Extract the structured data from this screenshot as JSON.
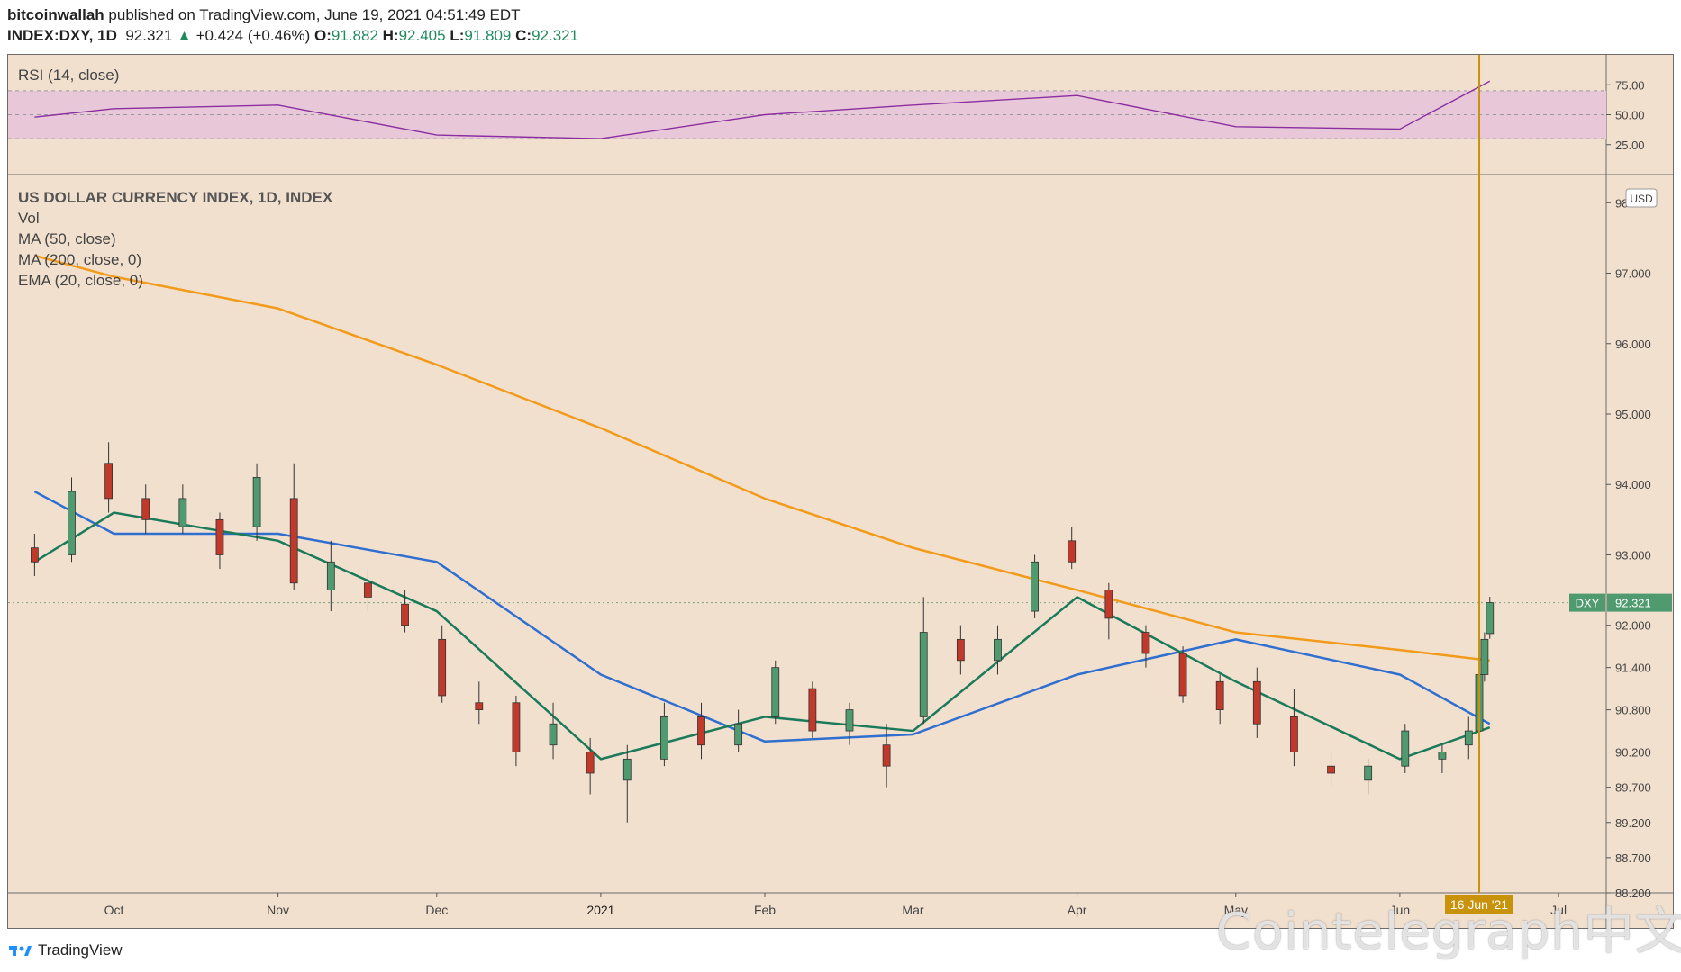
{
  "header": {
    "author": "bitcoinwallah",
    "published_text": "published on TradingView.com, June 19, 2021 04:51:49 EDT",
    "symbol": "INDEX:DXY, 1D",
    "price": "92.321",
    "change": "+0.424 (+0.46%)",
    "ohlc_o_label": "O:",
    "ohlc_o": "91.882",
    "ohlc_h_label": "H:",
    "ohlc_h": "92.405",
    "ohlc_l_label": "L:",
    "ohlc_l": "91.809",
    "ohlc_c_label": "C:",
    "ohlc_c": "92.321"
  },
  "rsi_panel": {
    "label": "RSI (14, close)",
    "ticks": [
      "75.00",
      "50.00",
      "25.00"
    ]
  },
  "main_panel": {
    "legend": [
      "US DOLLAR CURRENCY INDEX, 1D, INDEX",
      "Vol",
      "MA (50, close)",
      "MA (200, close, 0)",
      "EMA (20, close, 0)"
    ],
    "currency": "USD",
    "price_tag_symbol": "DXY",
    "price_tag_value": "92.321",
    "crosshair_date": "16 Jun '21"
  },
  "footer": {
    "brand": "TradingView"
  },
  "watermark": "Cointelegraph中文",
  "colors": {
    "background": "#f2e0cf",
    "rsi_band": "#e8c8d8",
    "rsi_line": "#8a2ea0",
    "up_candle": "#4f9a6e",
    "down_candle": "#c0392b",
    "ma50": "#2f6fcf",
    "ma200": "#f29a1a",
    "ema20": "#1b7a5a",
    "crosshair": "#c8920a"
  },
  "chart_data": {
    "type": "line",
    "title": "US DOLLAR CURRENCY INDEX, 1D, INDEX",
    "ylabel": "USD",
    "ylim": [
      88.2,
      98.4
    ],
    "y_ticks": [
      "98.000",
      "97.000",
      "96.000",
      "95.000",
      "94.000",
      "93.000",
      "92.000",
      "91.400",
      "90.800",
      "90.200",
      "89.700",
      "89.200",
      "88.700",
      "88.200"
    ],
    "x_ticks": [
      "Oct",
      "Nov",
      "Dec",
      "2021",
      "Feb",
      "Mar",
      "Apr",
      "May",
      "Jun",
      "Jul"
    ],
    "series": [
      {
        "name": "MA (200, close, 0)",
        "x": [
          "2020-09-16",
          "2020-10-01",
          "2020-11-01",
          "2020-12-01",
          "2021-01-01",
          "2021-02-01",
          "2021-03-01",
          "2021-04-01",
          "2021-05-01",
          "2021-06-01",
          "2021-06-18"
        ],
        "values": [
          97.25,
          96.95,
          96.5,
          95.7,
          94.8,
          93.8,
          93.1,
          92.5,
          91.9,
          91.65,
          91.5
        ]
      },
      {
        "name": "MA (50, close)",
        "x": [
          "2020-09-16",
          "2020-10-01",
          "2020-11-01",
          "2020-12-01",
          "2021-01-01",
          "2021-02-01",
          "2021-03-01",
          "2021-04-01",
          "2021-05-01",
          "2021-06-01",
          "2021-06-18"
        ],
        "values": [
          93.9,
          93.3,
          93.3,
          92.9,
          91.3,
          90.35,
          90.45,
          91.3,
          91.8,
          91.3,
          90.6
        ]
      },
      {
        "name": "EMA (20, close, 0)",
        "x": [
          "2020-09-16",
          "2020-10-01",
          "2020-11-01",
          "2020-12-01",
          "2021-01-01",
          "2021-02-01",
          "2021-03-01",
          "2021-04-01",
          "2021-05-01",
          "2021-06-01",
          "2021-06-18"
        ],
        "values": [
          92.9,
          93.6,
          93.2,
          92.2,
          90.1,
          90.7,
          90.5,
          92.4,
          91.2,
          90.1,
          90.55
        ]
      }
    ],
    "candles": [
      {
        "x": "2020-09-16",
        "o": 93.1,
        "h": 93.3,
        "l": 92.7,
        "c": 92.9
      },
      {
        "x": "2020-09-23",
        "o": 93.0,
        "h": 94.1,
        "l": 92.9,
        "c": 93.9
      },
      {
        "x": "2020-09-30",
        "o": 94.3,
        "h": 94.6,
        "l": 93.6,
        "c": 93.8
      },
      {
        "x": "2020-10-07",
        "o": 93.8,
        "h": 94.0,
        "l": 93.3,
        "c": 93.5
      },
      {
        "x": "2020-10-14",
        "o": 93.4,
        "h": 94.0,
        "l": 93.3,
        "c": 93.8
      },
      {
        "x": "2020-10-21",
        "o": 93.5,
        "h": 93.6,
        "l": 92.8,
        "c": 93.0
      },
      {
        "x": "2020-10-28",
        "o": 93.4,
        "h": 94.3,
        "l": 93.2,
        "c": 94.1
      },
      {
        "x": "2020-11-04",
        "o": 93.8,
        "h": 94.3,
        "l": 92.5,
        "c": 92.6
      },
      {
        "x": "2020-11-11",
        "o": 92.5,
        "h": 93.2,
        "l": 92.2,
        "c": 92.9
      },
      {
        "x": "2020-11-18",
        "o": 92.6,
        "h": 92.8,
        "l": 92.2,
        "c": 92.4
      },
      {
        "x": "2020-11-25",
        "o": 92.3,
        "h": 92.5,
        "l": 91.9,
        "c": 92.0
      },
      {
        "x": "2020-12-02",
        "o": 91.8,
        "h": 92.0,
        "l": 90.9,
        "c": 91.0
      },
      {
        "x": "2020-12-09",
        "o": 90.9,
        "h": 91.2,
        "l": 90.6,
        "c": 90.8
      },
      {
        "x": "2020-12-16",
        "o": 90.9,
        "h": 91.0,
        "l": 90.0,
        "c": 90.2
      },
      {
        "x": "2020-12-23",
        "o": 90.3,
        "h": 90.9,
        "l": 90.1,
        "c": 90.6
      },
      {
        "x": "2020-12-30",
        "o": 90.2,
        "h": 90.4,
        "l": 89.6,
        "c": 89.9
      },
      {
        "x": "2021-01-06",
        "o": 89.8,
        "h": 90.3,
        "l": 89.2,
        "c": 90.1
      },
      {
        "x": "2021-01-13",
        "o": 90.1,
        "h": 90.9,
        "l": 90.0,
        "c": 90.7
      },
      {
        "x": "2021-01-20",
        "o": 90.7,
        "h": 90.9,
        "l": 90.1,
        "c": 90.3
      },
      {
        "x": "2021-01-27",
        "o": 90.3,
        "h": 90.8,
        "l": 90.2,
        "c": 90.6
      },
      {
        "x": "2021-02-03",
        "o": 90.7,
        "h": 91.5,
        "l": 90.6,
        "c": 91.4
      },
      {
        "x": "2021-02-10",
        "o": 91.1,
        "h": 91.2,
        "l": 90.4,
        "c": 90.5
      },
      {
        "x": "2021-02-17",
        "o": 90.5,
        "h": 90.9,
        "l": 90.3,
        "c": 90.8
      },
      {
        "x": "2021-02-24",
        "o": 90.3,
        "h": 90.6,
        "l": 89.7,
        "c": 90.0
      },
      {
        "x": "2021-03-03",
        "o": 90.7,
        "h": 92.4,
        "l": 90.6,
        "c": 91.9
      },
      {
        "x": "2021-03-10",
        "o": 91.8,
        "h": 92.0,
        "l": 91.3,
        "c": 91.5
      },
      {
        "x": "2021-03-17",
        "o": 91.5,
        "h": 92.0,
        "l": 91.3,
        "c": 91.8
      },
      {
        "x": "2021-03-24",
        "o": 92.2,
        "h": 93.0,
        "l": 92.1,
        "c": 92.9
      },
      {
        "x": "2021-03-31",
        "o": 93.2,
        "h": 93.4,
        "l": 92.8,
        "c": 92.9
      },
      {
        "x": "2021-04-07",
        "o": 92.5,
        "h": 92.6,
        "l": 91.8,
        "c": 92.1
      },
      {
        "x": "2021-04-14",
        "o": 91.9,
        "h": 92.0,
        "l": 91.4,
        "c": 91.6
      },
      {
        "x": "2021-04-21",
        "o": 91.6,
        "h": 91.7,
        "l": 90.9,
        "c": 91.0
      },
      {
        "x": "2021-04-28",
        "o": 91.2,
        "h": 91.3,
        "l": 90.6,
        "c": 90.8
      },
      {
        "x": "2021-05-05",
        "o": 91.2,
        "h": 91.4,
        "l": 90.4,
        "c": 90.6
      },
      {
        "x": "2021-05-12",
        "o": 90.7,
        "h": 91.1,
        "l": 90.0,
        "c": 90.2
      },
      {
        "x": "2021-05-19",
        "o": 90.0,
        "h": 90.2,
        "l": 89.7,
        "c": 89.9
      },
      {
        "x": "2021-05-26",
        "o": 89.8,
        "h": 90.1,
        "l": 89.6,
        "c": 90.0
      },
      {
        "x": "2021-06-02",
        "o": 90.0,
        "h": 90.6,
        "l": 89.9,
        "c": 90.5
      },
      {
        "x": "2021-06-09",
        "o": 90.1,
        "h": 90.3,
        "l": 89.9,
        "c": 90.2
      },
      {
        "x": "2021-06-14",
        "o": 90.3,
        "h": 90.7,
        "l": 90.1,
        "c": 90.5
      },
      {
        "x": "2021-06-16",
        "o": 90.5,
        "h": 91.4,
        "l": 90.4,
        "c": 91.3
      },
      {
        "x": "2021-06-17",
        "o": 91.3,
        "h": 91.9,
        "l": 91.2,
        "c": 91.8
      },
      {
        "x": "2021-06-18",
        "o": 91.882,
        "h": 92.405,
        "l": 91.809,
        "c": 92.321
      }
    ],
    "rsi": {
      "name": "RSI (14, close)",
      "ylim": [
        0,
        100
      ],
      "bands": [
        30,
        70
      ],
      "x": [
        "2020-09-16",
        "2020-10-01",
        "2020-11-01",
        "2020-12-01",
        "2021-01-01",
        "2021-02-01",
        "2021-03-01",
        "2021-04-01",
        "2021-05-01",
        "2021-06-01",
        "2021-06-18"
      ],
      "values": [
        48,
        55,
        58,
        33,
        30,
        50,
        58,
        66,
        40,
        38,
        78
      ]
    }
  }
}
